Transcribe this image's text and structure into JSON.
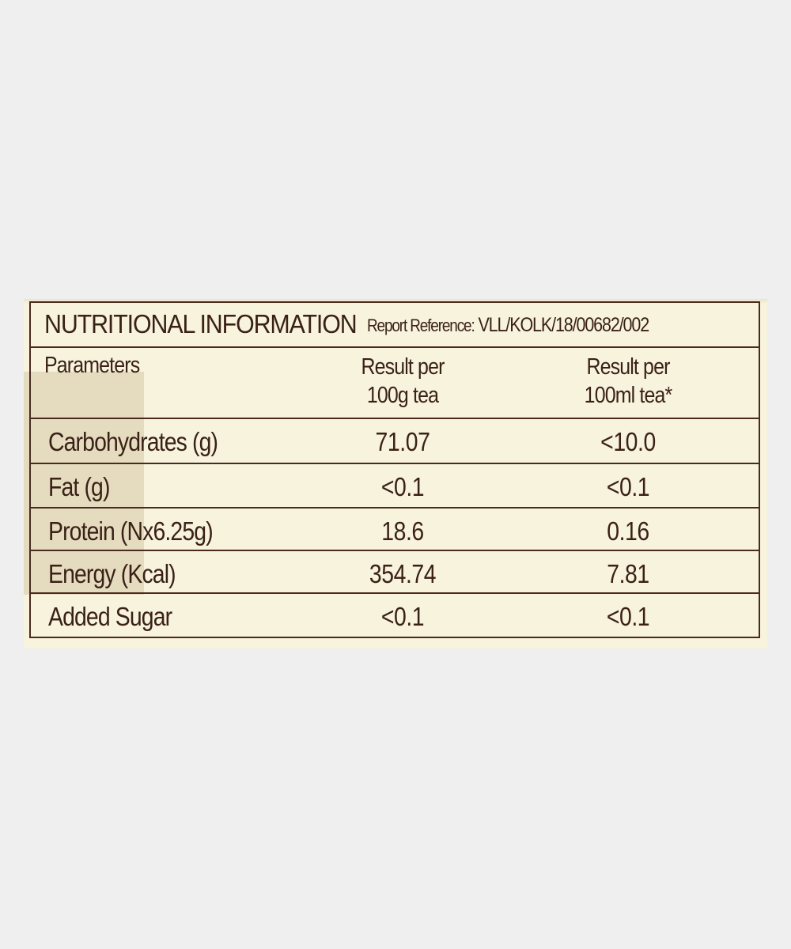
{
  "label": {
    "title": "NUTRITIONAL INFORMATION",
    "report_label": "Report Reference:",
    "report_value": "VLL/KOLK/18/00682/002"
  },
  "table": {
    "headers": {
      "parameters": "Parameters",
      "per_100g_line1": "Result per",
      "per_100g_line2": "100g tea",
      "per_100ml_line1": "Result per",
      "per_100ml_line2": "100ml tea*"
    },
    "rows": [
      {
        "parameter": "Carbohydrates (g)",
        "per_100g": "71.07",
        "per_100ml": "<10.0"
      },
      {
        "parameter": "Fat (g)",
        "per_100g": "<0.1",
        "per_100ml": "<0.1"
      },
      {
        "parameter": "Protein (Nx6.25g)",
        "per_100g": "18.6",
        "per_100ml": "0.16"
      },
      {
        "parameter": "Energy (Kcal)",
        "per_100g": "354.74",
        "per_100ml": "7.81"
      },
      {
        "parameter": "Added Sugar",
        "per_100g": "<0.1",
        "per_100ml": "<0.1"
      }
    ]
  },
  "colors": {
    "background": "#efefef",
    "paper": "#f8f3dc",
    "ink": "#3a2118",
    "rule": "#4a2a20"
  }
}
